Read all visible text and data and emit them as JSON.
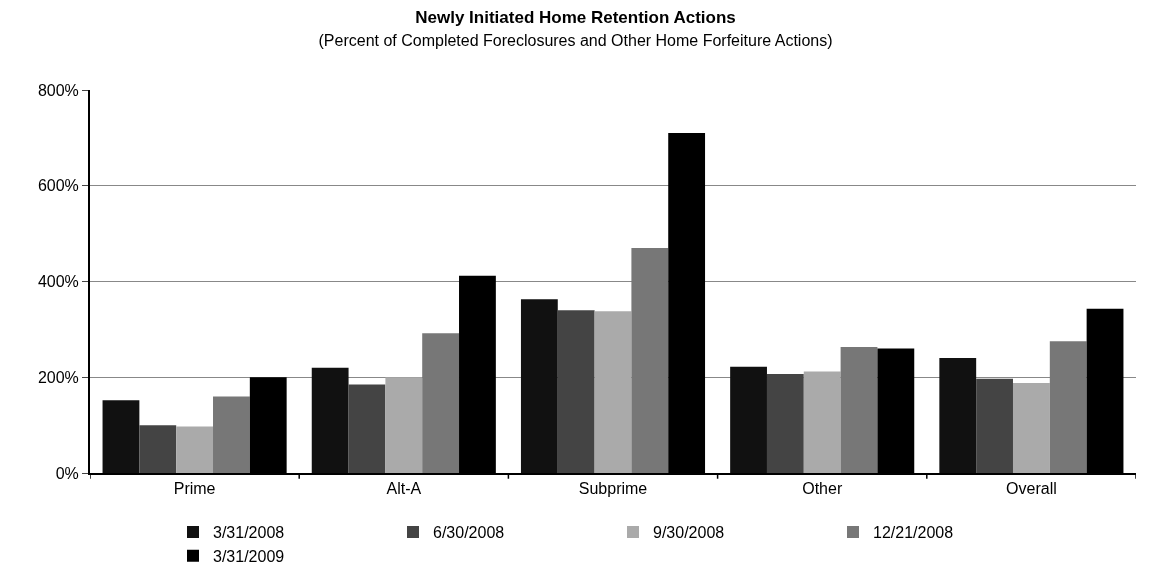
{
  "chart_data": {
    "type": "bar",
    "title": "Newly Initiated Home Retention Actions",
    "subtitle": "(Percent of Completed Foreclosures and Other Home Forfeiture Actions)",
    "categories": [
      "Prime",
      "Alt-A",
      "Subprime",
      "Other",
      "Overall"
    ],
    "series": [
      {
        "name": "3/31/2008",
        "color": "#111111",
        "values": [
          152,
          220,
          363,
          222,
          240
        ]
      },
      {
        "name": "6/30/2008",
        "color": "#444444",
        "values": [
          100,
          185,
          340,
          207,
          197
        ]
      },
      {
        "name": "9/30/2008",
        "color": "#aaaaaa",
        "values": [
          97,
          200,
          338,
          212,
          188
        ]
      },
      {
        "name": "12/21/2008",
        "color": "#777777",
        "values": [
          160,
          292,
          470,
          263,
          275
        ]
      },
      {
        "name": "3/31/2009",
        "color": "#000000",
        "values": [
          200,
          412,
          710,
          260,
          343
        ]
      }
    ],
    "ylim": [
      0,
      800
    ],
    "yticks": [
      {
        "value": 0,
        "label": "0%"
      },
      {
        "value": 200,
        "label": "200%"
      },
      {
        "value": 400,
        "label": "400%"
      },
      {
        "value": 600,
        "label": "600%"
      },
      {
        "value": 800,
        "label": "800%"
      }
    ],
    "grid": "y",
    "legend": "bottom"
  }
}
